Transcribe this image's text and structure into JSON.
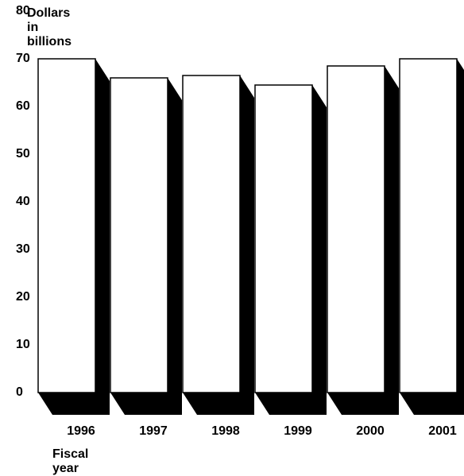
{
  "chart_data": {
    "type": "bar",
    "ylabel": "Dollars in billions",
    "xlabel": "Fiscal year",
    "categories": [
      "1996",
      "1997",
      "1998",
      "1999",
      "2000",
      "2001"
    ],
    "values": [
      70,
      66,
      66.5,
      64.5,
      68.5,
      70
    ],
    "ylim": [
      0,
      80
    ],
    "yticks": [
      "0",
      "10",
      "20",
      "30",
      "40",
      "50",
      "60",
      "70",
      "80"
    ],
    "grid": false,
    "style": "3d-shadow",
    "colors": {
      "bar_face": "#ffffff",
      "bar_shadow": "#000000",
      "outline": "#000000"
    }
  }
}
